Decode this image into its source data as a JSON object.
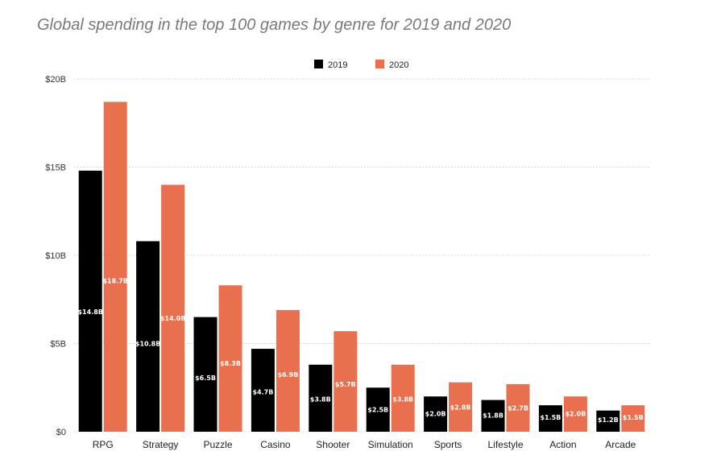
{
  "chart_data": {
    "type": "bar",
    "title": "Global spending in the top 100 games by genre for 2019 and 2020",
    "xlabel": "",
    "ylabel": "",
    "ylim": [
      0,
      20
    ],
    "yticks": [
      0,
      5,
      10,
      15,
      20
    ],
    "ytick_labels": [
      "$0",
      "$5B",
      "$10B",
      "$15B",
      "$20B"
    ],
    "grid": "horizontal dotted",
    "legend_position": "top-center",
    "categories": [
      "RPG",
      "Strategy",
      "Puzzle",
      "Casino",
      "Shooter",
      "Simulation",
      "Sports",
      "Lifestyle",
      "Action",
      "Arcade"
    ],
    "series": [
      {
        "name": "2019",
        "color": "#000000",
        "values": [
          14.8,
          10.8,
          6.5,
          4.7,
          3.8,
          2.5,
          2.0,
          1.8,
          1.5,
          1.2
        ],
        "labels": [
          "$14.8B",
          "$10.8B",
          "$6.5B",
          "$4.7B",
          "$3.8B",
          "$2.5B",
          "$2.0B",
          "$1.8B",
          "$1.5B",
          "$1.2B"
        ]
      },
      {
        "name": "2020",
        "color": "#e8704f",
        "values": [
          18.7,
          14.0,
          8.3,
          6.9,
          5.7,
          3.8,
          2.8,
          2.7,
          2.0,
          1.5
        ],
        "labels": [
          "$18.7B",
          "$14.0B",
          "$8.3B",
          "$6.9B",
          "$5.7B",
          "$3.8B",
          "$2.8B",
          "$2.7B",
          "$2.0B",
          "$1.5B"
        ]
      }
    ]
  }
}
